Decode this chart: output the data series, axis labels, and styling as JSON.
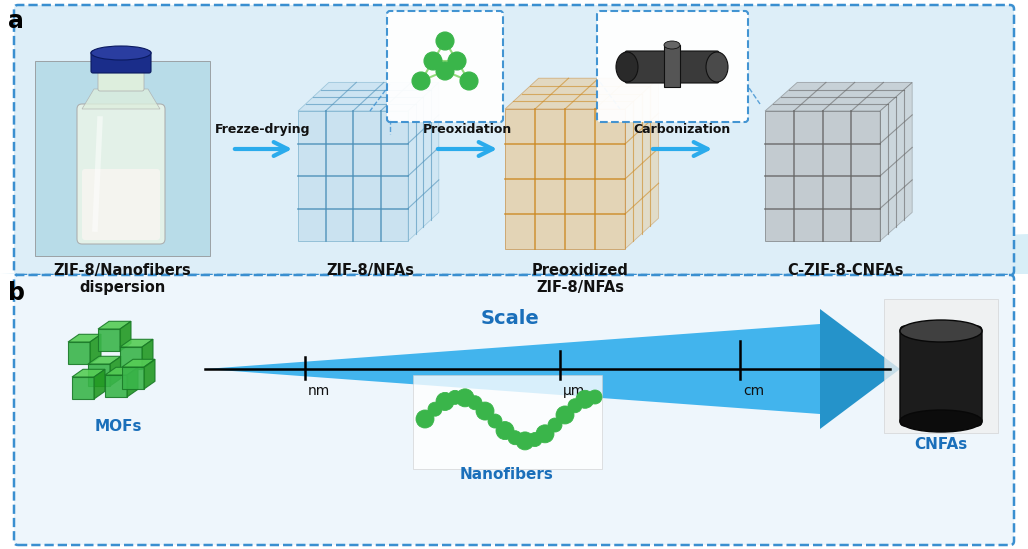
{
  "bg_color": "#ffffff",
  "panel_a_bg": "#ddeef8",
  "panel_b_bg": "#ffffff",
  "border_color": "#3a8fd0",
  "arrow_color": "#2aabec",
  "panel_a_label": "a",
  "panel_b_label": "b",
  "panel_a_labels": [
    "ZIF-8/Nanofibers\ndispersion",
    "ZIF-8/NFAs",
    "Preoxidized\nZIF-8/NFAs",
    "C-ZIF-8-CNFAs"
  ],
  "panel_a_arrows": [
    "Frezze-drying",
    "Preoxidation",
    "Carbonization"
  ],
  "panel_b_scale_label": "Scale",
  "panel_b_nm": "nm",
  "panel_b_um": "μm",
  "panel_b_cm": "cm",
  "panel_b_mofs": "MOFs",
  "panel_b_nanofibers": "Nanofibers",
  "panel_b_cnfas": "CNFAs",
  "blue_color": "#1a6fba",
  "green_color": "#3ab54a",
  "dark_green": "#1a7a28",
  "light_green": "#66cc44",
  "text_color": "#1a5fa8",
  "dark_text": "#111111",
  "bold_label_fontsize": 11,
  "sublabel_fontsize": 10,
  "arrow_label_fontsize": 9,
  "panel_b_triangle_color": "#2aabec",
  "panel_b_arrow_color": "#1a8ec8"
}
